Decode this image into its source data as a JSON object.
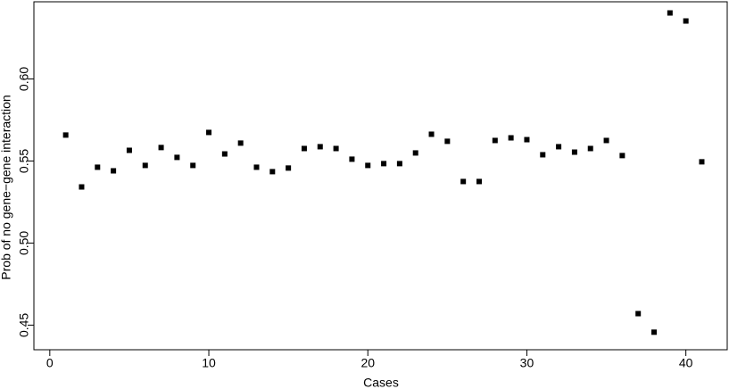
{
  "chart_data": {
    "type": "scatter",
    "xlabel": "Cases",
    "ylabel": "Prob of no gene−gene interaction",
    "x": [
      1,
      2,
      3,
      4,
      5,
      6,
      7,
      8,
      9,
      10,
      11,
      12,
      13,
      14,
      15,
      16,
      17,
      18,
      19,
      20,
      21,
      22,
      23,
      24,
      25,
      26,
      27,
      28,
      29,
      30,
      31,
      32,
      33,
      34,
      35,
      36,
      37,
      38,
      39,
      40,
      41
    ],
    "values": [
      0.5658,
      0.5342,
      0.5462,
      0.544,
      0.5565,
      0.5473,
      0.5582,
      0.5522,
      0.5473,
      0.5674,
      0.5543,
      0.5609,
      0.5462,
      0.5435,
      0.5457,
      0.5576,
      0.5587,
      0.5576,
      0.5511,
      0.5473,
      0.5484,
      0.5484,
      0.5549,
      0.5663,
      0.562,
      0.5375,
      0.5375,
      0.5625,
      0.5641,
      0.563,
      0.5538,
      0.5587,
      0.5554,
      0.5576,
      0.5625,
      0.5533,
      0.457,
      0.4457,
      0.6402,
      0.6353,
      0.5495
    ],
    "color": "#000000",
    "xlim": [
      -1,
      42.6
    ],
    "ylim": [
      0.435,
      0.647
    ],
    "xticks": [
      0,
      10,
      20,
      30,
      40
    ],
    "yticks": [
      0.45,
      {
        "value": 0.5,
        "label": "0.50"
      },
      0.55,
      {
        "value": 0.6,
        "label": "0.60"
      }
    ]
  }
}
